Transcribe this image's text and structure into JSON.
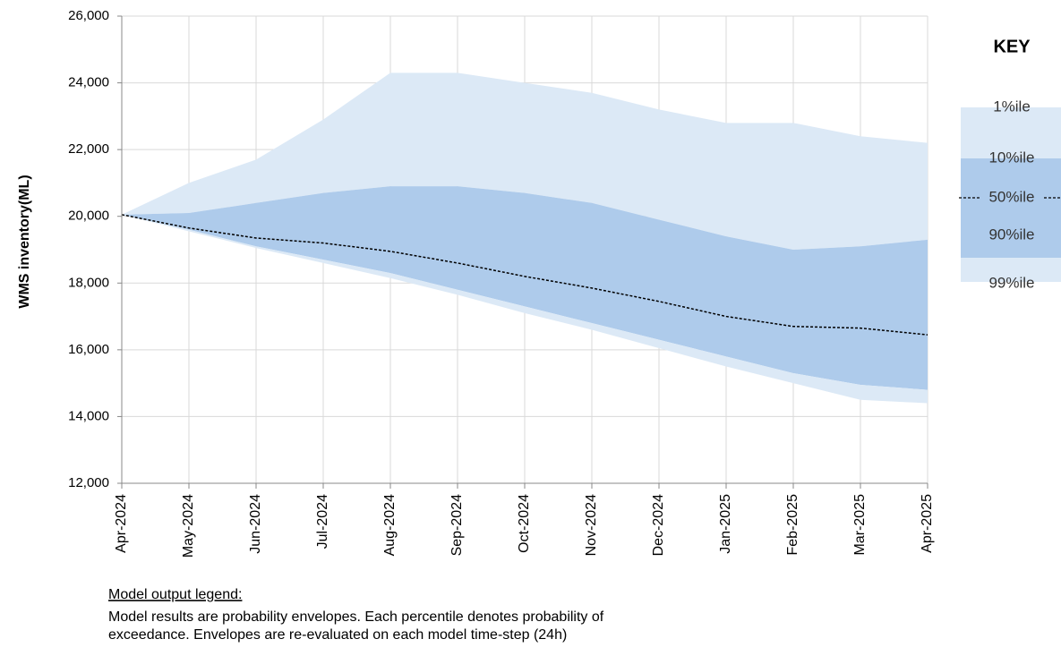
{
  "chart_data": {
    "type": "envelope",
    "ylabel": "WMS inventory(ML)",
    "categories": [
      "Apr-2024",
      "May-2024",
      "Jun-2024",
      "Jul-2024",
      "Aug-2024",
      "Sep-2024",
      "Oct-2024",
      "Nov-2024",
      "Dec-2024",
      "Jan-2025",
      "Feb-2025",
      "Mar-2025",
      "Apr-2025"
    ],
    "series": [
      {
        "name": "1%ile",
        "color": "#dce9f6",
        "values": [
          20050,
          21000,
          21700,
          22900,
          24300,
          24300,
          24000,
          23700,
          23200,
          22800,
          22800,
          22400,
          22200
        ]
      },
      {
        "name": "10%ile",
        "color": "#aecbeb",
        "values": [
          20050,
          20100,
          20400,
          20700,
          20900,
          20900,
          20700,
          20400,
          19900,
          19400,
          19000,
          19100,
          19300
        ]
      },
      {
        "name": "50%ile",
        "color": "#000000",
        "values": [
          20050,
          19650,
          19350,
          19200,
          18950,
          18600,
          18200,
          17850,
          17450,
          17000,
          16700,
          16650,
          16450
        ]
      },
      {
        "name": "90%ile",
        "color": "#aecbeb",
        "values": [
          20050,
          19600,
          19100,
          18700,
          18300,
          17800,
          17300,
          16800,
          16300,
          15800,
          15300,
          14950,
          14800
        ]
      },
      {
        "name": "99%ile",
        "color": "#dce9f6",
        "values": [
          20050,
          19550,
          19050,
          18600,
          18150,
          17650,
          17100,
          16600,
          16050,
          15500,
          15000,
          14500,
          14400
        ]
      }
    ],
    "ylim": [
      12000,
      26000
    ],
    "yticks": [
      {
        "value": 12000,
        "label": "12,000"
      },
      {
        "value": 14000,
        "label": "14,000"
      },
      {
        "value": 16000,
        "label": "16,000"
      },
      {
        "value": 18000,
        "label": "18,000"
      },
      {
        "value": 20000,
        "label": "20,000"
      },
      {
        "value": 22000,
        "label": "22,000"
      },
      {
        "value": 24000,
        "label": "24,000"
      },
      {
        "value": 26000,
        "label": "26,000"
      }
    ],
    "grid": true,
    "legend_title": "KEY",
    "note_title": "Model output legend:",
    "note_lines": [
      "Model results are probability envelopes. Each percentile denotes probability of",
      "exceedance. Envelopes are re-evaluated on each model time-step (24h)"
    ]
  }
}
